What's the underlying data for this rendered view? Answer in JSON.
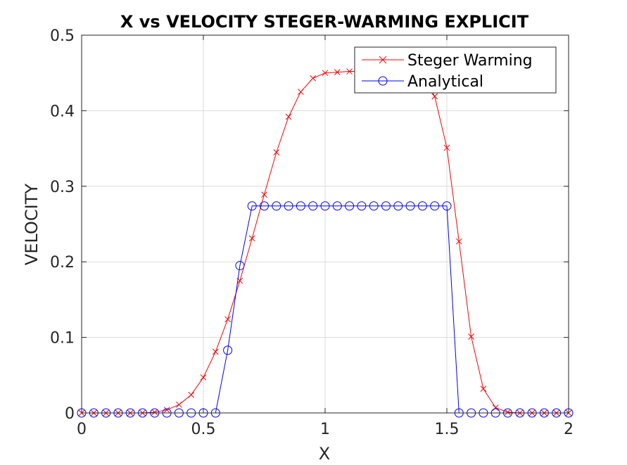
{
  "chart_data": {
    "type": "line",
    "title": "X vs VELOCITY STEGER-WARMING EXPLICIT",
    "xlabel": "X",
    "ylabel": "VELOCITY",
    "xlim": [
      0,
      2
    ],
    "ylim": [
      0,
      0.5
    ],
    "xticks": [
      0,
      0.5,
      1,
      1.5,
      2
    ],
    "xtick_labels": [
      "0",
      "0.5",
      "1",
      "1.5",
      "2"
    ],
    "yticks": [
      0,
      0.1,
      0.2,
      0.3,
      0.4,
      0.5
    ],
    "ytick_labels": [
      "0",
      "0.1",
      "0.2",
      "0.3",
      "0.4",
      "0.5"
    ],
    "grid": true,
    "legend_position": "top-right",
    "series": [
      {
        "name": "Steger Warming",
        "color": "#ff0000",
        "marker": "x",
        "x": [
          0,
          0.05,
          0.1,
          0.15,
          0.2,
          0.25,
          0.3,
          0.35,
          0.4,
          0.45,
          0.5,
          0.55,
          0.6,
          0.65,
          0.7,
          0.75,
          0.8,
          0.85,
          0.9,
          0.95,
          1.0,
          1.05,
          1.1,
          1.15,
          1.2,
          1.25,
          1.3,
          1.35,
          1.4,
          1.45,
          1.5,
          1.55,
          1.6,
          1.65,
          1.7,
          1.75,
          1.8,
          1.85,
          1.9,
          1.95,
          2.0
        ],
        "y": [
          0,
          0,
          0,
          0,
          0,
          0,
          0.001,
          0.004,
          0.011,
          0.024,
          0.047,
          0.081,
          0.124,
          0.175,
          0.231,
          0.289,
          0.345,
          0.392,
          0.425,
          0.443,
          0.45,
          0.451,
          0.452,
          0.452,
          0.452,
          0.452,
          0.452,
          0.451,
          0.449,
          0.419,
          0.351,
          0.227,
          0.101,
          0.032,
          0.007,
          0.001,
          0,
          0,
          0,
          0,
          0
        ]
      },
      {
        "name": "Analytical",
        "color": "#0000ff",
        "marker": "o",
        "x": [
          0,
          0.05,
          0.1,
          0.15,
          0.2,
          0.25,
          0.3,
          0.35,
          0.4,
          0.45,
          0.5,
          0.55,
          0.6,
          0.65,
          0.7,
          0.75,
          0.8,
          0.85,
          0.9,
          0.95,
          1.0,
          1.05,
          1.1,
          1.15,
          1.2,
          1.25,
          1.3,
          1.35,
          1.4,
          1.45,
          1.5,
          1.55,
          1.6,
          1.65,
          1.7,
          1.75,
          1.8,
          1.85,
          1.9,
          1.95,
          2.0
        ],
        "y": [
          0,
          0,
          0,
          0,
          0,
          0,
          0,
          0,
          0,
          0,
          0,
          0,
          0.083,
          0.195,
          0.274,
          0.274,
          0.274,
          0.274,
          0.274,
          0.274,
          0.274,
          0.274,
          0.274,
          0.274,
          0.274,
          0.274,
          0.274,
          0.274,
          0.274,
          0.274,
          0.274,
          0,
          0,
          0,
          0,
          0,
          0,
          0,
          0,
          0,
          0
        ]
      }
    ]
  }
}
